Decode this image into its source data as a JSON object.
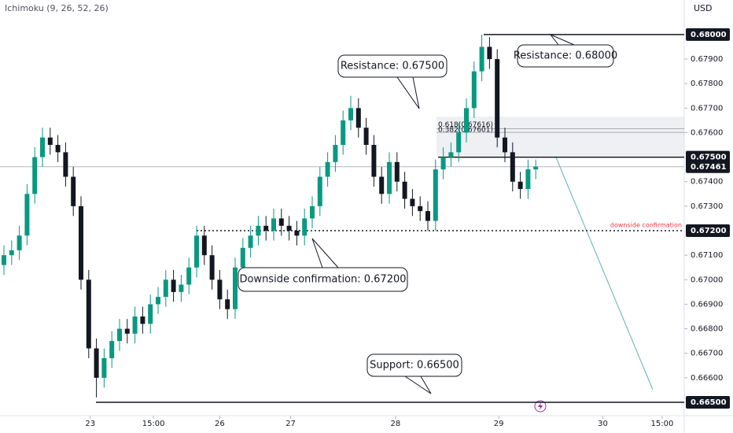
{
  "chart_data": {
    "type": "candlestick",
    "indicator": "Ichimoku (9, 26, 52, 26)",
    "currency": "USD",
    "up_color": "#089981",
    "down_color": "#131722",
    "open": [
      0.6706,
      0.671,
      0.6712,
      0.6718,
      0.6735,
      0.675,
      0.6758,
      0.6755,
      0.6752,
      0.6742,
      0.673,
      0.67,
      0.6672,
      0.666,
      0.6668,
      0.6675,
      0.668,
      0.6678,
      0.6685,
      0.6682,
      0.669,
      0.6693,
      0.67,
      0.6695,
      0.6698,
      0.6705,
      0.6718,
      0.671,
      0.67,
      0.6692,
      0.6688,
      0.6705,
      0.6713,
      0.6718,
      0.6722,
      0.672,
      0.6725,
      0.6722,
      0.672,
      0.6718,
      0.6725,
      0.673,
      0.6742,
      0.6748,
      0.6755,
      0.6765,
      0.677,
      0.6762,
      0.6755,
      0.6742,
      0.6735,
      0.6748,
      0.674,
      0.6733,
      0.673,
      0.6728,
      0.6724,
      0.6745,
      0.675,
      0.6752,
      0.676,
      0.677,
      0.6785,
      0.6795,
      0.679,
      0.6758,
      0.6752,
      0.674,
      0.6737,
      0.6745
    ],
    "high": [
      0.6714,
      0.6716,
      0.6722,
      0.6739,
      0.6754,
      0.6762,
      0.6762,
      0.6759,
      0.6756,
      0.6746,
      0.6734,
      0.6704,
      0.6676,
      0.6672,
      0.6679,
      0.6684,
      0.6684,
      0.6689,
      0.6689,
      0.6694,
      0.6697,
      0.6704,
      0.6704,
      0.6702,
      0.6709,
      0.6722,
      0.6722,
      0.6714,
      0.6704,
      0.6696,
      0.6709,
      0.6717,
      0.6722,
      0.6726,
      0.6726,
      0.6729,
      0.6729,
      0.6726,
      0.6724,
      0.6729,
      0.6734,
      0.6746,
      0.6752,
      0.6759,
      0.6769,
      0.6775,
      0.6774,
      0.6766,
      0.6759,
      0.6746,
      0.6752,
      0.6752,
      0.6744,
      0.6737,
      0.6734,
      0.6732,
      0.6749,
      0.6754,
      0.6756,
      0.6764,
      0.6774,
      0.6789,
      0.68,
      0.6799,
      0.6794,
      0.6762,
      0.6756,
      0.6744,
      0.6749,
      0.6749
    ],
    "low": [
      0.6702,
      0.6706,
      0.6708,
      0.6714,
      0.6731,
      0.6746,
      0.6751,
      0.6748,
      0.6738,
      0.6726,
      0.6696,
      0.6668,
      0.6652,
      0.6656,
      0.6664,
      0.6671,
      0.6674,
      0.6674,
      0.6678,
      0.6678,
      0.6686,
      0.6689,
      0.6691,
      0.6691,
      0.6694,
      0.6701,
      0.6706,
      0.6696,
      0.6688,
      0.6684,
      0.6684,
      0.6701,
      0.6709,
      0.6714,
      0.6716,
      0.6716,
      0.6718,
      0.6716,
      0.6714,
      0.6714,
      0.6721,
      0.6726,
      0.6738,
      0.6744,
      0.6751,
      0.6761,
      0.6758,
      0.6751,
      0.6738,
      0.6731,
      0.6731,
      0.6736,
      0.6729,
      0.6726,
      0.6724,
      0.672,
      0.672,
      0.6741,
      0.6746,
      0.6748,
      0.6756,
      0.6766,
      0.6781,
      0.6786,
      0.6754,
      0.6748,
      0.6736,
      0.6733,
      0.6733,
      0.6741
    ],
    "close": [
      0.671,
      0.6712,
      0.6718,
      0.6735,
      0.675,
      0.6758,
      0.6755,
      0.6752,
      0.6742,
      0.673,
      0.67,
      0.6672,
      0.666,
      0.6668,
      0.6675,
      0.668,
      0.6678,
      0.6685,
      0.6682,
      0.669,
      0.6693,
      0.67,
      0.6695,
      0.6698,
      0.6705,
      0.6718,
      0.671,
      0.67,
      0.6692,
      0.6688,
      0.6705,
      0.6713,
      0.6718,
      0.6722,
      0.672,
      0.6725,
      0.6722,
      0.672,
      0.6718,
      0.6725,
      0.673,
      0.6742,
      0.6748,
      0.6755,
      0.6765,
      0.677,
      0.6762,
      0.6755,
      0.6742,
      0.6735,
      0.6748,
      0.674,
      0.6733,
      0.673,
      0.6728,
      0.6724,
      0.6745,
      0.675,
      0.6752,
      0.676,
      0.677,
      0.6785,
      0.6795,
      0.679,
      0.6758,
      0.6752,
      0.674,
      0.6737,
      0.6745,
      0.67461
    ],
    "ylim": [
      0.68141,
      0.66439
    ],
    "yticks": [
      {
        "value": 0.679,
        "label": "0.67900"
      },
      {
        "value": 0.678,
        "label": "0.67800"
      },
      {
        "value": 0.677,
        "label": "0.67700"
      },
      {
        "value": 0.676,
        "label": "0.67600"
      },
      {
        "value": 0.674,
        "label": "0.67400"
      },
      {
        "value": 0.673,
        "label": "0.67300"
      },
      {
        "value": 0.671,
        "label": "0.67100"
      },
      {
        "value": 0.67,
        "label": "0.67000"
      },
      {
        "value": 0.669,
        "label": "0.66900"
      },
      {
        "value": 0.668,
        "label": "0.66800"
      },
      {
        "value": 0.667,
        "label": "0.66700"
      },
      {
        "value": 0.666,
        "label": "0.66600"
      }
    ],
    "xticks": [
      {
        "value": 11.2,
        "label": "23"
      },
      {
        "value": 19.4,
        "label": "15:00"
      },
      {
        "value": 28,
        "label": "26"
      },
      {
        "value": 37.2,
        "label": "27"
      },
      {
        "value": 50.8,
        "label": "28"
      },
      {
        "value": 64.2,
        "label": "29"
      },
      {
        "value": 77.7,
        "label": "30"
      },
      {
        "value": 85.4,
        "label": "15:00"
      }
    ],
    "price_tags": [
      {
        "value": 0.68,
        "label": "0.68000"
      },
      {
        "value": 0.675,
        "label": "0.67500"
      },
      {
        "value": 0.67461,
        "label": "0.67461"
      },
      {
        "value": 0.672,
        "label": "0.67200"
      },
      {
        "value": 0.665,
        "label": "0.66500"
      }
    ],
    "fib_levels": [
      {
        "value": 0.67616,
        "label": "0.618(0.67616)"
      },
      {
        "value": 0.67601,
        "label": "0.382(0.67601)"
      }
    ],
    "confirmation_note": "downside confirmation",
    "annotations": [
      "Resistance: 0.67500",
      "Resistance: 0.68000",
      "Downside confirmation: 0.67200",
      "Support: 0.66500"
    ]
  }
}
